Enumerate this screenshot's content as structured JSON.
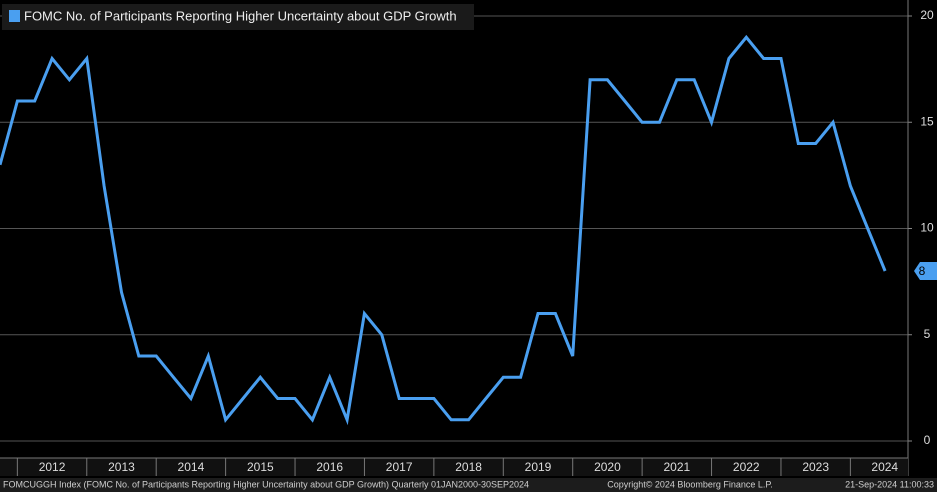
{
  "chart_data": {
    "type": "line",
    "x": [
      2011.75,
      2012,
      2012.25,
      2012.5,
      2012.75,
      2013,
      2013.25,
      2013.5,
      2013.75,
      2014,
      2014.25,
      2014.5,
      2014.75,
      2015,
      2015.25,
      2015.5,
      2015.75,
      2016,
      2016.25,
      2016.5,
      2016.75,
      2017,
      2017.25,
      2017.5,
      2017.75,
      2018,
      2018.25,
      2018.5,
      2018.75,
      2019,
      2019.25,
      2019.5,
      2019.75,
      2020,
      2020.25,
      2020.5,
      2020.75,
      2021,
      2021.25,
      2021.5,
      2021.75,
      2022,
      2022.25,
      2022.5,
      2022.75,
      2023,
      2023.25,
      2023.5,
      2023.75,
      2024,
      2024.25,
      2024.5
    ],
    "series": [
      {
        "name": "FOMC No. of Participants Reporting Higher Uncertainty about GDP Growth",
        "color": "#4a9ff0",
        "values": [
          13,
          16,
          16,
          18,
          17,
          18,
          12,
          7,
          4,
          4,
          3,
          2,
          4,
          1,
          2,
          3,
          2,
          2,
          1,
          3,
          1,
          6,
          5,
          2,
          2,
          2,
          1,
          1,
          2,
          3,
          3,
          6,
          6,
          4,
          17,
          17,
          16,
          15,
          15,
          17,
          17,
          15,
          18,
          19,
          18,
          18,
          14,
          14,
          15,
          12,
          10,
          8
        ]
      }
    ],
    "xlim": [
      2011.75,
      2024.83
    ],
    "xticks": [
      2012,
      2013,
      2014,
      2015,
      2016,
      2017,
      2018,
      2019,
      2020,
      2021,
      2022,
      2023,
      2024
    ],
    "ylim": [
      0,
      20
    ],
    "yticks": [
      0,
      5,
      10,
      15,
      20
    ],
    "grid": true,
    "legend": "top-left"
  },
  "footer": {
    "description": "FOMCUGGH Index (FOMC No. of Participants Reporting Higher Uncertainty about GDP Growth)  Quarterly 01JAN2000-30SEP2024",
    "copyright": "Copyright© 2024 Bloomberg Finance L.P.",
    "timestamp": "21-Sep-2024 11:00:33"
  }
}
